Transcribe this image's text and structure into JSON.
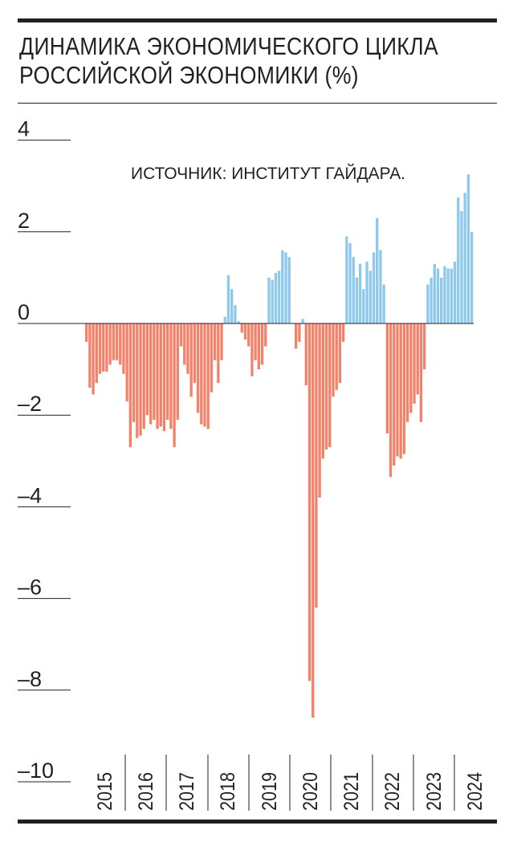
{
  "title_line1": "ДИНАМИКА ЭКОНОМИЧЕСКОГО ЦИКЛА",
  "title_line2": "РОССИЙСКОЙ ЭКОНОМИКИ (%)",
  "source": "ИСТОЧНИК: ИНСТИТУТ ГАЙДАРА.",
  "colors": {
    "positive": "#8ec8ec",
    "negative": "#f4816a",
    "ink": "#231f20"
  },
  "chart_data": {
    "type": "bar",
    "title": "ДИНАМИКА ЭКОНОМИЧЕСКОГО ЦИКЛА РОССИЙСКОЙ ЭКОНОМИКИ (%)",
    "xlabel": "",
    "ylabel": "",
    "ylim": [
      -10,
      4
    ],
    "yticks": [
      4,
      2,
      0,
      -2,
      -4,
      -6,
      -8,
      -10
    ],
    "ytick_labels": [
      "4",
      "2",
      "0",
      "–2",
      "–4",
      "–6",
      "–8",
      "–10"
    ],
    "grid": false,
    "years": [
      "2015",
      "2016",
      "2017",
      "2018",
      "2019",
      "2020",
      "2021",
      "2022",
      "2023",
      "2024"
    ],
    "x_start": "2015-01",
    "frequency": "monthly",
    "values": [
      -0.4,
      -1.4,
      -1.55,
      -1.3,
      -1.1,
      -1.05,
      -1.05,
      -0.9,
      -0.8,
      -0.8,
      -0.9,
      -1.1,
      -1.7,
      -2.7,
      -2.15,
      -2.5,
      -2.45,
      -2.3,
      -2.0,
      -2.2,
      -2.1,
      -2.3,
      -2.25,
      -2.35,
      -2.1,
      -2.3,
      -2.7,
      -2.1,
      -0.5,
      -0.9,
      -1.1,
      -1.6,
      -1.3,
      -1.95,
      -2.2,
      -2.25,
      -2.3,
      -1.5,
      -0.8,
      -1.3,
      -0.8,
      0.15,
      1.05,
      0.75,
      0.4,
      0.05,
      -0.2,
      -0.35,
      -0.5,
      -1.15,
      -0.8,
      -1.0,
      -0.9,
      -0.5,
      1.0,
      0.95,
      1.1,
      1.15,
      1.6,
      1.55,
      1.45,
      0.0,
      -0.55,
      -0.4,
      0.1,
      -1.35,
      -7.8,
      -8.6,
      -6.2,
      -3.8,
      -2.95,
      -2.75,
      -2.7,
      -1.6,
      -1.45,
      -1.3,
      -0.4,
      1.9,
      1.75,
      1.45,
      1.0,
      1.3,
      0.75,
      1.35,
      1.15,
      1.55,
      2.3,
      1.6,
      0.85,
      -2.4,
      -3.35,
      -3.1,
      -2.9,
      -2.95,
      -2.85,
      -2.15,
      -1.95,
      -1.75,
      -1.55,
      -2.15,
      -1.0,
      0.85,
      1.0,
      1.3,
      1.2,
      1.0,
      1.25,
      1.2,
      1.2,
      1.35,
      2.75,
      2.45,
      2.85,
      3.25,
      2.0
    ]
  }
}
